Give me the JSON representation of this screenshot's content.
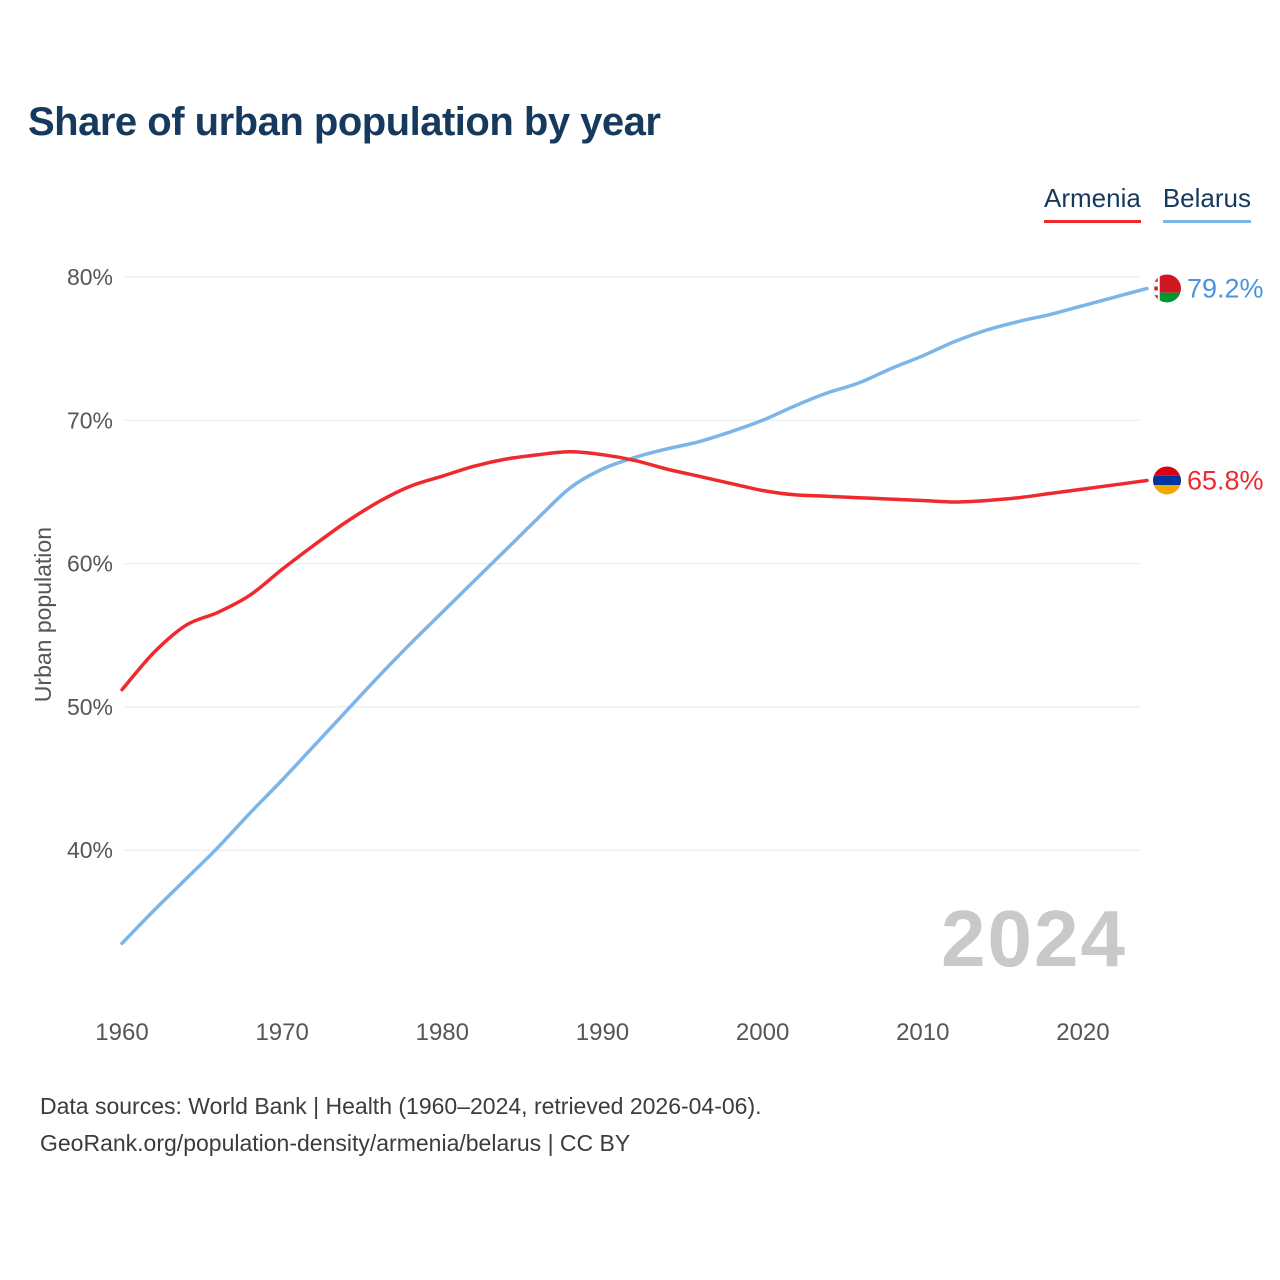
{
  "title": "Share of urban population by year",
  "legend": [
    {
      "label": "Armenia",
      "color": "#ee2a2e"
    },
    {
      "label": "Belarus",
      "color": "#7cb5e8"
    }
  ],
  "ylabel": "Urban population",
  "watermark": "2024",
  "footer": {
    "line1": "Data sources: World Bank | Health (1960–2024, retrieved 2026-04-06).",
    "line2": "GeoRank.org/population-density/armenia/belarus | CC BY"
  },
  "chart_data": {
    "type": "line",
    "title": "Share of urban population by year",
    "xlabel": "",
    "ylabel": "Urban population",
    "grid": "horizontal",
    "legend_position": "top-right",
    "ylim": [
      33,
      81
    ],
    "y_ticks": [
      "40%",
      "50%",
      "60%",
      "70%",
      "80%"
    ],
    "x_ticks": [
      1960,
      1970,
      1980,
      1990,
      2000,
      2010,
      2020
    ],
    "x": [
      1960,
      1962,
      1964,
      1966,
      1968,
      1970,
      1972,
      1974,
      1976,
      1978,
      1980,
      1982,
      1984,
      1986,
      1988,
      1990,
      1992,
      1994,
      1996,
      1998,
      2000,
      2002,
      2004,
      2006,
      2008,
      2010,
      2012,
      2014,
      2016,
      2018,
      2020,
      2022,
      2024
    ],
    "series": [
      {
        "name": "Belarus",
        "color": "#7cb5e8",
        "label_color": "#4a94dd",
        "end_label": "79.2%",
        "end_value": 79.2,
        "flag": "belarus",
        "values": [
          33.5,
          35.8,
          38.0,
          40.2,
          42.6,
          44.9,
          47.3,
          49.7,
          52.1,
          54.4,
          56.6,
          58.8,
          61.0,
          63.2,
          65.3,
          66.6,
          67.4,
          68.0,
          68.5,
          69.2,
          70.0,
          71.0,
          71.9,
          72.6,
          73.6,
          74.5,
          75.5,
          76.3,
          76.9,
          77.4,
          78.0,
          78.6,
          79.2
        ]
      },
      {
        "name": "Armenia",
        "color": "#ee2a2e",
        "label_color": "#ee2a2e",
        "end_label": "65.8%",
        "end_value": 65.8,
        "flag": "armenia",
        "values": [
          51.2,
          53.8,
          55.7,
          56.6,
          57.8,
          59.6,
          61.3,
          62.9,
          64.3,
          65.4,
          66.1,
          66.8,
          67.3,
          67.6,
          67.8,
          67.6,
          67.2,
          66.6,
          66.1,
          65.6,
          65.1,
          64.8,
          64.7,
          64.6,
          64.5,
          64.4,
          64.3,
          64.4,
          64.6,
          64.9,
          65.2,
          65.5,
          65.8
        ]
      }
    ]
  }
}
